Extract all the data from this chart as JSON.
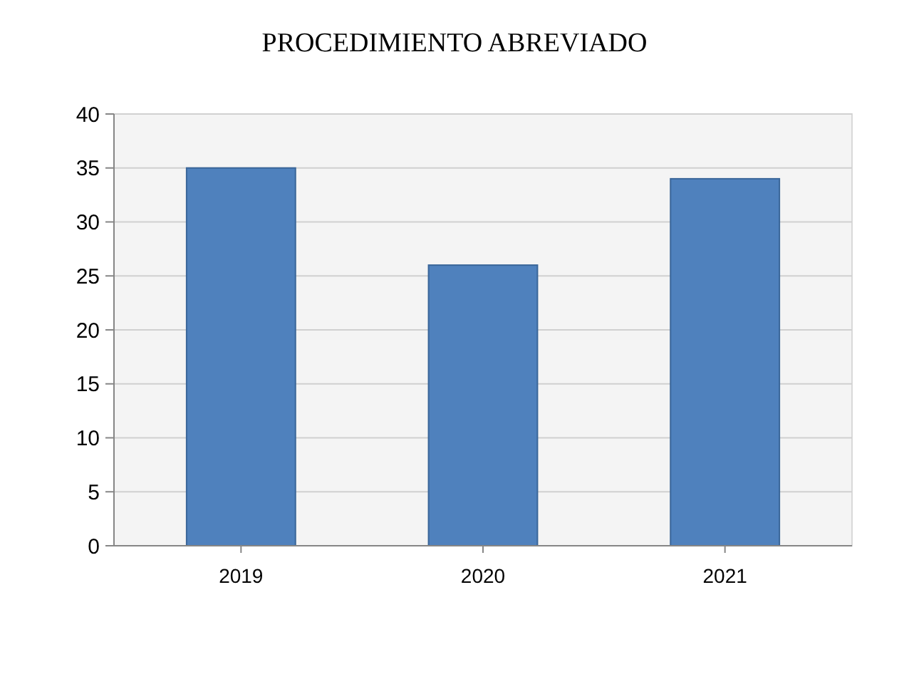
{
  "chart_data": {
    "type": "bar",
    "title": "PROCEDIMIENTO ABREVIADO",
    "categories": [
      "2019",
      "2020",
      "2021"
    ],
    "values": [
      35,
      26,
      34
    ],
    "color": "#4f81bd",
    "ylim": [
      0,
      40
    ],
    "yticks": [
      0,
      5,
      10,
      15,
      20,
      25,
      30,
      35,
      40
    ],
    "grid": true
  }
}
